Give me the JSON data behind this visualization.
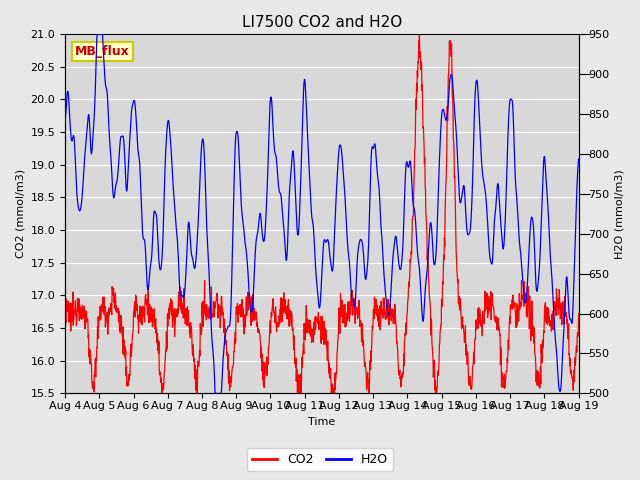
{
  "title": "LI7500 CO2 and H2O",
  "xlabel": "Time",
  "ylabel_left": "CO2 (mmol/m3)",
  "ylabel_right": "H2O (mmol/m3)",
  "ylim_left": [
    15.5,
    21.0
  ],
  "ylim_right": [
    500,
    950
  ],
  "yticks_left": [
    15.5,
    16.0,
    16.5,
    17.0,
    17.5,
    18.0,
    18.5,
    19.0,
    19.5,
    20.0,
    20.5,
    21.0
  ],
  "yticks_right": [
    500,
    550,
    600,
    650,
    700,
    750,
    800,
    850,
    900,
    950
  ],
  "xtick_labels": [
    "Aug 4",
    "Aug 5",
    "Aug 6",
    "Aug 7",
    "Aug 8",
    "Aug 9",
    "Aug 10",
    "Aug 11",
    "Aug 12",
    "Aug 13",
    "Aug 14",
    "Aug 15",
    "Aug 16",
    "Aug 17",
    "Aug 18",
    "Aug 19"
  ],
  "co2_color": "#ff0000",
  "h2o_color": "#0000ff",
  "fig_bg_color": "#e8e8e8",
  "plot_bg_color": "#d8d8d8",
  "grid_color": "#ffffff",
  "watermark_text": "MB_flux",
  "watermark_bg": "#ffffcc",
  "watermark_border": "#cccc00",
  "legend_co2": "CO2",
  "legend_h2o": "H2O",
  "title_fontsize": 11,
  "axis_fontsize": 8,
  "tick_fontsize": 8,
  "linewidth": 0.9
}
